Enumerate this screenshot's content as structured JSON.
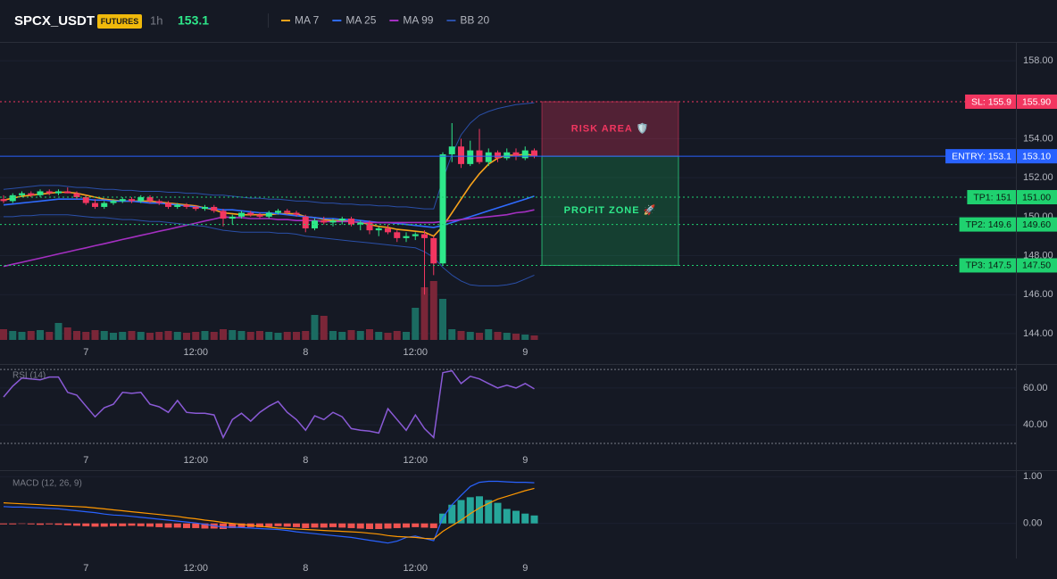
{
  "chart_data": [
    {
      "type": "candlestick",
      "title": "SPCX_USDT",
      "badge": "FUTURES",
      "interval": "1h",
      "last_price": 153.1,
      "categories": [
        null,
        null,
        null,
        null,
        null,
        null,
        null,
        null,
        null,
        "7",
        null,
        null,
        null,
        null,
        null,
        null,
        null,
        null,
        null,
        null,
        null,
        "12:00",
        null,
        null,
        null,
        null,
        null,
        null,
        null,
        null,
        null,
        null,
        null,
        "8",
        null,
        null,
        null,
        null,
        null,
        null,
        null,
        null,
        null,
        null,
        null,
        "12:00",
        null,
        null,
        null,
        null,
        null,
        null,
        null,
        null,
        null,
        null,
        null,
        "9",
        null
      ],
      "open": [
        150.9,
        150.8,
        151.1,
        151.2,
        151.1,
        151.3,
        151.2,
        151.3,
        151.2,
        151.0,
        150.7,
        150.5,
        150.7,
        150.8,
        150.9,
        150.8,
        151.0,
        150.8,
        150.7,
        150.5,
        150.6,
        150.5,
        150.4,
        150.5,
        150.3,
        149.9,
        150.0,
        150.2,
        150.1,
        150.0,
        150.2,
        150.3,
        150.2,
        150.0,
        149.4,
        149.8,
        149.7,
        149.8,
        149.9,
        149.6,
        149.7,
        149.3,
        149.4,
        149.2,
        148.9,
        149.0,
        149.1,
        148.9,
        147.6,
        153.2,
        153.6,
        152.7,
        153.4,
        152.8,
        153.3,
        153.0,
        153.3,
        153.0,
        153.4
      ],
      "high": [
        151.1,
        151.2,
        151.3,
        151.3,
        151.4,
        151.4,
        151.4,
        151.5,
        151.3,
        151.1,
        150.9,
        150.8,
        150.9,
        151.0,
        151.0,
        151.1,
        151.1,
        150.9,
        150.8,
        150.7,
        150.7,
        150.6,
        150.6,
        150.6,
        150.4,
        150.1,
        150.3,
        150.3,
        150.2,
        150.3,
        150.4,
        150.4,
        150.3,
        150.1,
        149.9,
        150.0,
        149.9,
        150.0,
        150.0,
        149.8,
        149.8,
        149.5,
        149.6,
        149.3,
        149.2,
        149.2,
        149.3,
        149.0,
        153.3,
        154.8,
        154.0,
        153.9,
        154.5,
        153.5,
        153.4,
        153.5,
        153.5,
        153.6,
        153.5
      ],
      "low": [
        150.7,
        150.7,
        151.0,
        151.0,
        151.0,
        151.1,
        151.1,
        151.2,
        150.9,
        150.6,
        150.4,
        150.4,
        150.6,
        150.7,
        150.7,
        150.7,
        150.7,
        150.6,
        150.4,
        150.4,
        150.4,
        150.3,
        150.3,
        150.2,
        149.5,
        149.6,
        149.9,
        150.0,
        149.9,
        149.9,
        150.1,
        150.1,
        150.0,
        149.2,
        149.3,
        149.6,
        149.5,
        149.6,
        149.5,
        149.3,
        149.1,
        149.0,
        149.1,
        148.7,
        148.7,
        148.8,
        146.0,
        147.0,
        147.5,
        152.8,
        152.5,
        152.6,
        152.7,
        152.6,
        152.8,
        152.9,
        152.9,
        152.9,
        153.0
      ],
      "close": [
        150.8,
        151.1,
        151.2,
        151.1,
        151.3,
        151.2,
        151.3,
        151.2,
        151.0,
        150.7,
        150.5,
        150.7,
        150.8,
        150.9,
        150.8,
        151.0,
        150.8,
        150.7,
        150.5,
        150.6,
        150.5,
        150.4,
        150.5,
        150.3,
        149.9,
        150.0,
        150.2,
        150.1,
        150.0,
        150.2,
        150.3,
        150.2,
        150.1,
        149.4,
        149.8,
        149.7,
        149.8,
        149.9,
        149.6,
        149.7,
        149.3,
        149.4,
        149.2,
        148.9,
        149.0,
        149.1,
        148.9,
        147.6,
        153.2,
        153.6,
        152.7,
        153.4,
        152.8,
        153.3,
        153.0,
        153.3,
        153.1,
        153.4,
        153.1
      ],
      "volume": [
        12,
        10,
        9,
        10,
        11,
        9,
        19,
        14,
        10,
        9,
        11,
        10,
        8,
        9,
        10,
        9,
        8,
        9,
        10,
        9,
        8,
        9,
        10,
        9,
        12,
        11,
        10,
        9,
        10,
        9,
        8,
        9,
        9,
        10,
        28,
        27,
        10,
        9,
        11,
        10,
        12,
        9,
        8,
        10,
        9,
        36,
        59,
        66,
        46,
        12,
        10,
        9,
        8,
        12,
        9,
        8,
        7,
        6,
        5
      ],
      "up_color": "#2ee88a",
      "down_color": "#f23660",
      "volume_up_color": "#1b6b61",
      "volume_down_color": "#7a2638",
      "series": [
        {
          "name": "MA 7",
          "color": "#f7a21b",
          "values": [
            150.85,
            150.95,
            151.05,
            151.1,
            151.15,
            151.2,
            151.25,
            151.25,
            151.2,
            151.1,
            151.0,
            150.9,
            150.85,
            150.8,
            150.8,
            150.8,
            150.8,
            150.75,
            150.7,
            150.65,
            150.6,
            150.55,
            150.45,
            150.35,
            150.2,
            150.15,
            150.1,
            150.1,
            150.1,
            150.1,
            150.15,
            150.15,
            150.15,
            150.0,
            149.95,
            149.85,
            149.8,
            149.8,
            149.75,
            149.7,
            149.6,
            149.5,
            149.45,
            149.35,
            149.3,
            149.25,
            149.2,
            149.0,
            149.5,
            150.2,
            150.9,
            151.6,
            152.2,
            152.7,
            153.0,
            153.15,
            153.15,
            153.2,
            153.15
          ]
        },
        {
          "name": "MA 25",
          "color": "#2f6bff",
          "values": [
            150.6,
            150.65,
            150.7,
            150.75,
            150.8,
            150.85,
            150.9,
            150.9,
            150.9,
            150.9,
            150.85,
            150.85,
            150.8,
            150.8,
            150.8,
            150.75,
            150.7,
            150.7,
            150.65,
            150.6,
            150.55,
            150.5,
            150.45,
            150.4,
            150.35,
            150.35,
            150.3,
            150.25,
            150.2,
            150.2,
            150.15,
            150.1,
            150.05,
            150.0,
            149.95,
            149.9,
            149.9,
            149.85,
            149.85,
            149.8,
            149.75,
            149.7,
            149.7,
            149.65,
            149.6,
            149.55,
            149.5,
            149.45,
            149.55,
            149.7,
            149.85,
            150.0,
            150.15,
            150.3,
            150.45,
            150.6,
            150.75,
            150.9,
            151.05
          ]
        },
        {
          "name": "MA 99",
          "color": "#a42fc1",
          "values": [
            147.45,
            147.56,
            147.66,
            147.77,
            147.87,
            147.98,
            148.09,
            148.19,
            148.3,
            148.4,
            148.51,
            148.61,
            148.72,
            148.83,
            148.93,
            149.04,
            149.14,
            149.25,
            149.35,
            149.46,
            149.56,
            149.67,
            149.78,
            149.88,
            149.99,
            149.95,
            149.95,
            149.9,
            149.9,
            149.9,
            149.85,
            149.85,
            149.8,
            149.8,
            149.8,
            149.75,
            149.75,
            149.75,
            149.75,
            149.7,
            149.7,
            149.7,
            149.7,
            149.7,
            149.7,
            149.7,
            149.7,
            149.7,
            149.75,
            149.8,
            149.85,
            149.9,
            149.95,
            150.0,
            150.05,
            150.1,
            150.2,
            150.25,
            150.35
          ]
        },
        {
          "name": "BB 20",
          "color": "#2a4fa8",
          "upper": [
            151.4,
            151.45,
            151.5,
            151.55,
            151.6,
            151.6,
            151.6,
            151.55,
            151.5,
            151.5,
            151.45,
            151.4,
            151.4,
            151.35,
            151.35,
            151.3,
            151.3,
            151.3,
            151.25,
            151.25,
            151.2,
            151.2,
            151.15,
            151.1,
            151.1,
            151.05,
            151.0,
            150.95,
            150.95,
            150.9,
            150.9,
            150.85,
            150.8,
            150.8,
            150.75,
            150.7,
            150.7,
            150.65,
            150.65,
            150.6,
            150.6,
            150.55,
            150.55,
            150.5,
            150.5,
            150.45,
            150.4,
            150.4,
            151.9,
            153.2,
            154.2,
            154.8,
            155.2,
            155.4,
            155.55,
            155.65,
            155.75,
            155.8,
            155.85
          ],
          "lower": [
            150.0,
            150.0,
            150.05,
            150.05,
            150.1,
            150.1,
            150.1,
            150.1,
            150.05,
            150.0,
            149.95,
            149.95,
            149.9,
            149.85,
            149.85,
            149.8,
            149.75,
            149.75,
            149.7,
            149.65,
            149.6,
            149.55,
            149.5,
            149.4,
            149.3,
            149.25,
            149.2,
            149.2,
            149.2,
            149.2,
            149.15,
            149.15,
            149.1,
            149.0,
            148.95,
            148.9,
            148.85,
            148.8,
            148.75,
            148.7,
            148.65,
            148.6,
            148.55,
            148.5,
            148.45,
            148.4,
            148.2,
            147.9,
            147.4,
            147.0,
            146.7,
            146.5,
            146.45,
            146.45,
            146.45,
            146.5,
            146.6,
            146.8,
            147.0
          ]
        }
      ],
      "levels": [
        {
          "label": "SL: 155.9",
          "value": 155.9,
          "value_label": "155.90",
          "color": "#f23660",
          "text_color": "#ffffff"
        },
        {
          "label": "ENTRY: 153.1",
          "value": 153.1,
          "value_label": "153.10",
          "color": "#2962ff",
          "text_color": "#ffffff"
        },
        {
          "label": "TP1: 151",
          "value": 151,
          "value_label": "151.00",
          "color": "#1fd16f",
          "text_color": "#0b1a12"
        },
        {
          "label": "TP2: 149.6",
          "value": 149.6,
          "value_label": "149.60",
          "color": "#1fd16f",
          "text_color": "#0b1a12"
        },
        {
          "label": "TP3: 147.5",
          "value": 147.5,
          "value_label": "147.50",
          "color": "#1fd16f",
          "text_color": "#0b1a12"
        }
      ],
      "risk_zone_label": "RISK AREA 🛡️",
      "profit_zone_label": "PROFIT ZONE 🚀",
      "ylim": [
        142.44,
        158.92
      ],
      "yticks": [
        {
          "value": 144,
          "label": "144.00"
        },
        {
          "value": 146,
          "label": "146.00"
        },
        {
          "value": 148,
          "label": "148.00"
        },
        {
          "value": 150,
          "label": "150.00"
        },
        {
          "value": 152,
          "label": "152.00"
        },
        {
          "value": 154,
          "label": "154.00"
        },
        {
          "value": 158,
          "label": "158.00"
        }
      ]
    },
    {
      "type": "line",
      "title": "RSI (14)",
      "color": "#8a5ad6",
      "levels": [
        70,
        30
      ],
      "values": [
        55.1,
        61,
        65.4,
        64.9,
        64.4,
        65.9,
        65.9,
        57.6,
        56.1,
        50.2,
        44.4,
        49.3,
        51.2,
        57.6,
        57.1,
        57.6,
        51.2,
        49.8,
        46.8,
        53.2,
        46.8,
        46.3,
        46.3,
        45.4,
        33.2,
        42.9,
        46.3,
        42,
        46.8,
        50.2,
        52.7,
        46.8,
        42.9,
        37.1,
        44.9,
        42.9,
        46.8,
        44.4,
        38,
        37.1,
        36.6,
        35.6,
        48.8,
        42.9,
        37.1,
        45.4,
        38,
        33.2,
        68.3,
        69.3,
        62.4,
        66.3,
        64.9,
        62.4,
        60,
        61.5,
        60,
        62.4,
        59.5
      ],
      "ylim": [
        16,
        72
      ],
      "yticks": [
        {
          "value": 40,
          "label": "40.00"
        },
        {
          "value": 60,
          "label": "60.00"
        }
      ]
    },
    {
      "type": "macd",
      "title": "MACD (12, 26, 9)",
      "histogram": {
        "up_color": "#26a69a",
        "down_color": "#ef5350",
        "values": [
          -0.02,
          -0.02,
          -0.01,
          -0.02,
          -0.03,
          -0.02,
          -0.03,
          -0.04,
          -0.05,
          -0.06,
          -0.07,
          -0.07,
          -0.06,
          -0.06,
          -0.05,
          -0.06,
          -0.07,
          -0.08,
          -0.09,
          -0.09,
          -0.1,
          -0.1,
          -0.11,
          -0.11,
          -0.12,
          -0.1,
          -0.09,
          -0.08,
          -0.08,
          -0.07,
          -0.06,
          -0.07,
          -0.08,
          -0.1,
          -0.09,
          -0.09,
          -0.08,
          -0.09,
          -0.1,
          -0.11,
          -0.12,
          -0.12,
          -0.11,
          -0.1,
          -0.09,
          -0.08,
          -0.09,
          -0.1,
          0.21,
          0.4,
          0.5,
          0.56,
          0.58,
          0.5,
          0.44,
          0.31,
          0.27,
          0.21,
          0.17
        ]
      },
      "series": [
        {
          "color": "#2962ff",
          "values": [
            0.36,
            0.35,
            0.35,
            0.34,
            0.33,
            0.32,
            0.31,
            0.29,
            0.27,
            0.25,
            0.23,
            0.2,
            0.18,
            0.17,
            0.15,
            0.13,
            0.11,
            0.09,
            0.07,
            0.05,
            0.03,
            0.01,
            -0.02,
            -0.05,
            -0.08,
            -0.08,
            -0.09,
            -0.1,
            -0.11,
            -0.12,
            -0.13,
            -0.15,
            -0.18,
            -0.2,
            -0.22,
            -0.24,
            -0.26,
            -0.28,
            -0.3,
            -0.33,
            -0.36,
            -0.39,
            -0.42,
            -0.38,
            -0.3,
            -0.27,
            -0.32,
            -0.37,
            0.12,
            0.4,
            0.6,
            0.79,
            0.88,
            0.9,
            0.9,
            0.89,
            0.88,
            0.88,
            0.87
          ]
        },
        {
          "color": "#ff9800",
          "values": [
            0.44,
            0.43,
            0.42,
            0.41,
            0.4,
            0.39,
            0.38,
            0.37,
            0.36,
            0.35,
            0.33,
            0.31,
            0.29,
            0.27,
            0.25,
            0.23,
            0.21,
            0.19,
            0.17,
            0.15,
            0.12,
            0.1,
            0.07,
            0.05,
            0.02,
            0.0,
            -0.02,
            -0.04,
            -0.06,
            -0.08,
            -0.1,
            -0.11,
            -0.12,
            -0.13,
            -0.14,
            -0.15,
            -0.16,
            -0.17,
            -0.18,
            -0.19,
            -0.21,
            -0.23,
            -0.26,
            -0.28,
            -0.29,
            -0.3,
            -0.32,
            -0.33,
            -0.17,
            -0.05,
            0.07,
            0.21,
            0.33,
            0.43,
            0.52,
            0.58,
            0.64,
            0.7,
            0.75
          ]
        }
      ],
      "ylim": [
        -0.75,
        1.12
      ],
      "yticks": [
        {
          "value": 0,
          "label": "0.00"
        },
        {
          "value": 1,
          "label": "1.00"
        }
      ]
    }
  ]
}
